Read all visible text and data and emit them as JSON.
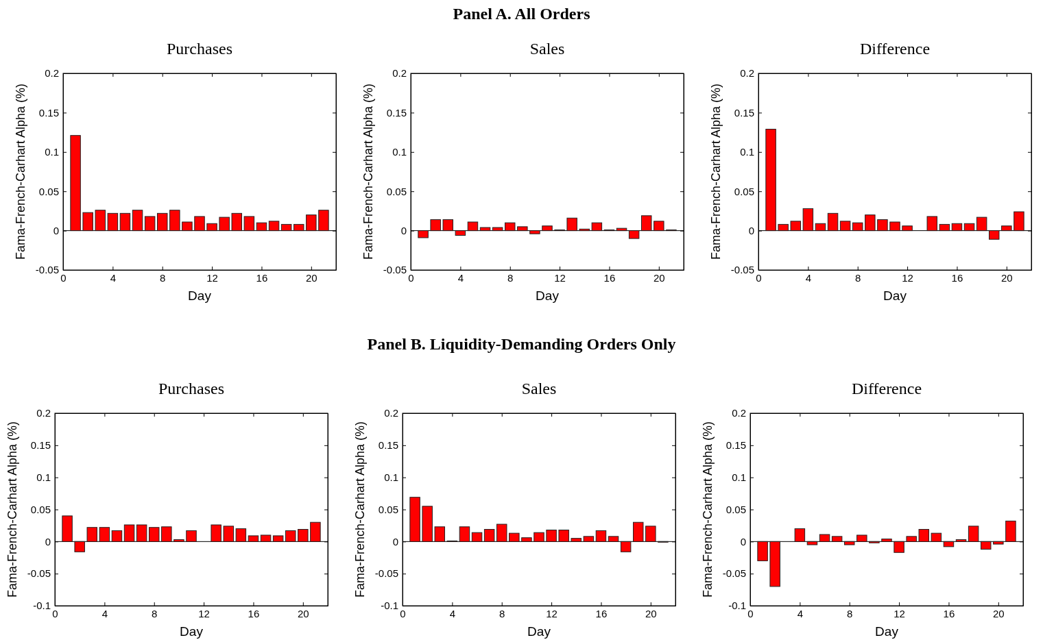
{
  "chart_data": [
    {
      "type": "other",
      "title": "Panel A. All Orders"
    },
    {
      "type": "bar",
      "title": "Purchases",
      "xlabel": "Day",
      "ylabel": "Fama-French-Carhart Alpha (%)",
      "x": [
        1,
        2,
        3,
        4,
        5,
        6,
        7,
        8,
        9,
        10,
        11,
        12,
        13,
        14,
        15,
        16,
        17,
        18,
        19,
        20,
        21
      ],
      "xlim": [
        0,
        22
      ],
      "xticks": [
        0,
        4,
        8,
        12,
        16,
        20
      ],
      "ylim": [
        -0.05,
        0.2
      ],
      "yticks": [
        -0.05,
        0,
        0.05,
        0.1,
        0.15,
        0.2
      ],
      "color": "#ff0000",
      "values": [
        0.121,
        0.023,
        0.026,
        0.022,
        0.022,
        0.026,
        0.018,
        0.022,
        0.026,
        0.011,
        0.018,
        0.009,
        0.017,
        0.022,
        0.018,
        0.01,
        0.012,
        0.008,
        0.008,
        0.02,
        0.026
      ]
    },
    {
      "type": "bar",
      "title": "Sales",
      "xlabel": "Day",
      "ylabel": "Fama-French-Carhart Alpha (%)",
      "x": [
        1,
        2,
        3,
        4,
        5,
        6,
        7,
        8,
        9,
        10,
        11,
        12,
        13,
        14,
        15,
        16,
        17,
        18,
        19,
        20,
        21
      ],
      "xlim": [
        0,
        22
      ],
      "xticks": [
        0,
        4,
        8,
        12,
        16,
        20
      ],
      "ylim": [
        -0.05,
        0.2
      ],
      "yticks": [
        -0.05,
        0,
        0.05,
        0.1,
        0.15,
        0.2
      ],
      "color": "#ff0000",
      "values": [
        -0.009,
        0.014,
        0.014,
        -0.006,
        0.011,
        0.004,
        0.004,
        0.01,
        0.005,
        -0.004,
        0.006,
        0.001,
        0.016,
        0.002,
        0.01,
        0.001,
        0.003,
        -0.01,
        0.019,
        0.012,
        0.001
      ]
    },
    {
      "type": "bar",
      "title": "Difference",
      "xlabel": "Day",
      "ylabel": "Fama-French-Carhart Alpha (%)",
      "x": [
        1,
        2,
        3,
        4,
        5,
        6,
        7,
        8,
        9,
        10,
        11,
        12,
        13,
        14,
        15,
        16,
        17,
        18,
        19,
        20,
        21
      ],
      "xlim": [
        0,
        22
      ],
      "xticks": [
        0,
        4,
        8,
        12,
        16,
        20
      ],
      "ylim": [
        -0.05,
        0.2
      ],
      "yticks": [
        -0.05,
        0,
        0.05,
        0.1,
        0.15,
        0.2
      ],
      "color": "#ff0000",
      "values": [
        0.129,
        0.008,
        0.012,
        0.028,
        0.009,
        0.022,
        0.012,
        0.01,
        0.02,
        0.014,
        0.011,
        0.006,
        0,
        0.018,
        0.008,
        0.009,
        0.009,
        0.017,
        -0.011,
        0.006,
        0.024
      ]
    },
    {
      "type": "other",
      "title": "Panel B. Liquidity-Demanding Orders Only"
    },
    {
      "type": "bar",
      "title": "Purchases",
      "xlabel": "Day",
      "ylabel": "Fama-French-Carhart Alpha (%)",
      "x": [
        1,
        2,
        3,
        4,
        5,
        6,
        7,
        8,
        9,
        10,
        11,
        12,
        13,
        14,
        15,
        16,
        17,
        18,
        19,
        20,
        21
      ],
      "xlim": [
        0,
        22
      ],
      "xticks": [
        0,
        4,
        8,
        12,
        16,
        20
      ],
      "ylim": [
        -0.1,
        0.2
      ],
      "yticks": [
        -0.1,
        -0.05,
        0,
        0.05,
        0.1,
        0.15,
        0.2
      ],
      "color": "#ff0000",
      "values": [
        0.04,
        -0.016,
        0.022,
        0.022,
        0.017,
        0.026,
        0.026,
        0.022,
        0.023,
        0.003,
        0.017,
        0,
        0.026,
        0.024,
        0.02,
        0.009,
        0.01,
        0.009,
        0.017,
        0.019,
        0.03
      ]
    },
    {
      "type": "bar",
      "title": "Sales",
      "xlabel": "Day",
      "ylabel": "Fama-French-Carhart Alpha (%)",
      "x": [
        1,
        2,
        3,
        4,
        5,
        6,
        7,
        8,
        9,
        10,
        11,
        12,
        13,
        14,
        15,
        16,
        17,
        18,
        19,
        20,
        21
      ],
      "xlim": [
        0,
        22
      ],
      "xticks": [
        0,
        4,
        8,
        12,
        16,
        20
      ],
      "ylim": [
        -0.1,
        0.2
      ],
      "yticks": [
        -0.1,
        -0.05,
        0,
        0.05,
        0.1,
        0.15,
        0.2
      ],
      "color": "#ff0000",
      "values": [
        0.069,
        0.055,
        0.023,
        0.001,
        0.023,
        0.014,
        0.019,
        0.027,
        0.013,
        0.006,
        0.014,
        0.018,
        0.018,
        0.005,
        0.008,
        0.017,
        0.008,
        -0.016,
        0.03,
        0.024,
        -0.001
      ]
    },
    {
      "type": "bar",
      "title": "Difference",
      "xlabel": "Day",
      "ylabel": "Fama-French-Carhart Alpha (%)",
      "x": [
        1,
        2,
        3,
        4,
        5,
        6,
        7,
        8,
        9,
        10,
        11,
        12,
        13,
        14,
        15,
        16,
        17,
        18,
        19,
        20,
        21
      ],
      "xlim": [
        0,
        22
      ],
      "xticks": [
        0,
        4,
        8,
        12,
        16,
        20
      ],
      "ylim": [
        -0.1,
        0.2
      ],
      "yticks": [
        -0.1,
        -0.05,
        0,
        0.05,
        0.1,
        0.15,
        0.2
      ],
      "color": "#ff0000",
      "values": [
        -0.03,
        -0.07,
        0,
        0.02,
        -0.005,
        0.011,
        0.008,
        -0.005,
        0.01,
        -0.002,
        0.004,
        -0.017,
        0.008,
        0.019,
        0.013,
        -0.008,
        0.003,
        0.024,
        -0.012,
        -0.004,
        0.032
      ]
    }
  ]
}
